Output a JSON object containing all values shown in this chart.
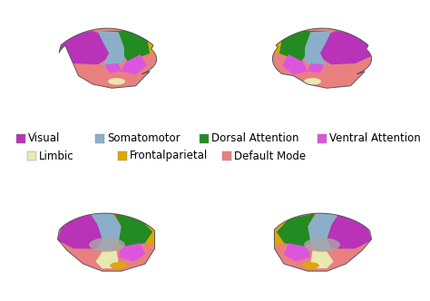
{
  "networks": [
    {
      "label": "Visual",
      "color": "#B833B8"
    },
    {
      "label": "Somatomotor",
      "color": "#8BAFC8"
    },
    {
      "label": "Dorsal Attention",
      "color": "#228B22"
    },
    {
      "label": "Ventral Attention",
      "color": "#DD55DD"
    },
    {
      "label": "Limbic",
      "color": "#E8E8B0"
    },
    {
      "label": "Frontalparietal",
      "color": "#DDA800"
    },
    {
      "label": "Default Mode",
      "color": "#E88080"
    }
  ],
  "background_color": "#ffffff",
  "legend_row1": [
    0,
    1,
    2,
    3
  ],
  "legend_row2": [
    4,
    5,
    6
  ],
  "font_size": 8.5
}
